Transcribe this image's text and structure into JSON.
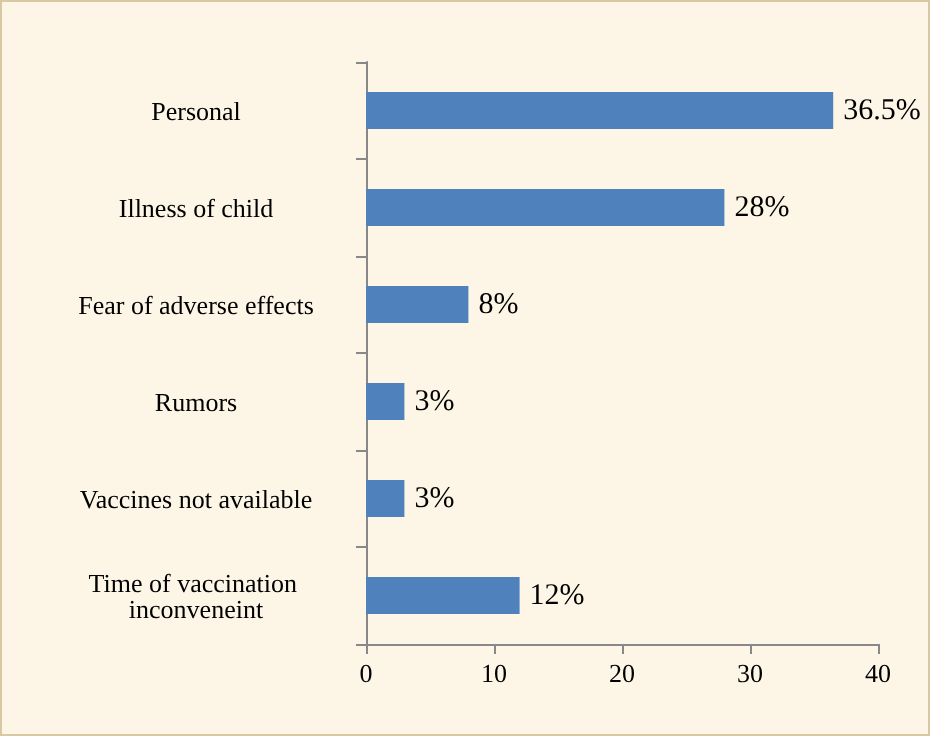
{
  "chart_data": {
    "type": "bar",
    "orientation": "horizontal",
    "categories": [
      "Personal",
      "Illness of child",
      "Fear of adverse effects",
      "Rumors",
      "Vaccines not available",
      "Time of vaccination inconveneint"
    ],
    "values": [
      36.5,
      28,
      8,
      3,
      3,
      12
    ],
    "value_labels": [
      "36.5%",
      "28%",
      "8%",
      "3%",
      "3%",
      "12%"
    ],
    "color": "#4f81bd",
    "xlim": [
      0,
      40
    ],
    "xticks": [
      0,
      10,
      20,
      30,
      40
    ],
    "grid": false
  }
}
